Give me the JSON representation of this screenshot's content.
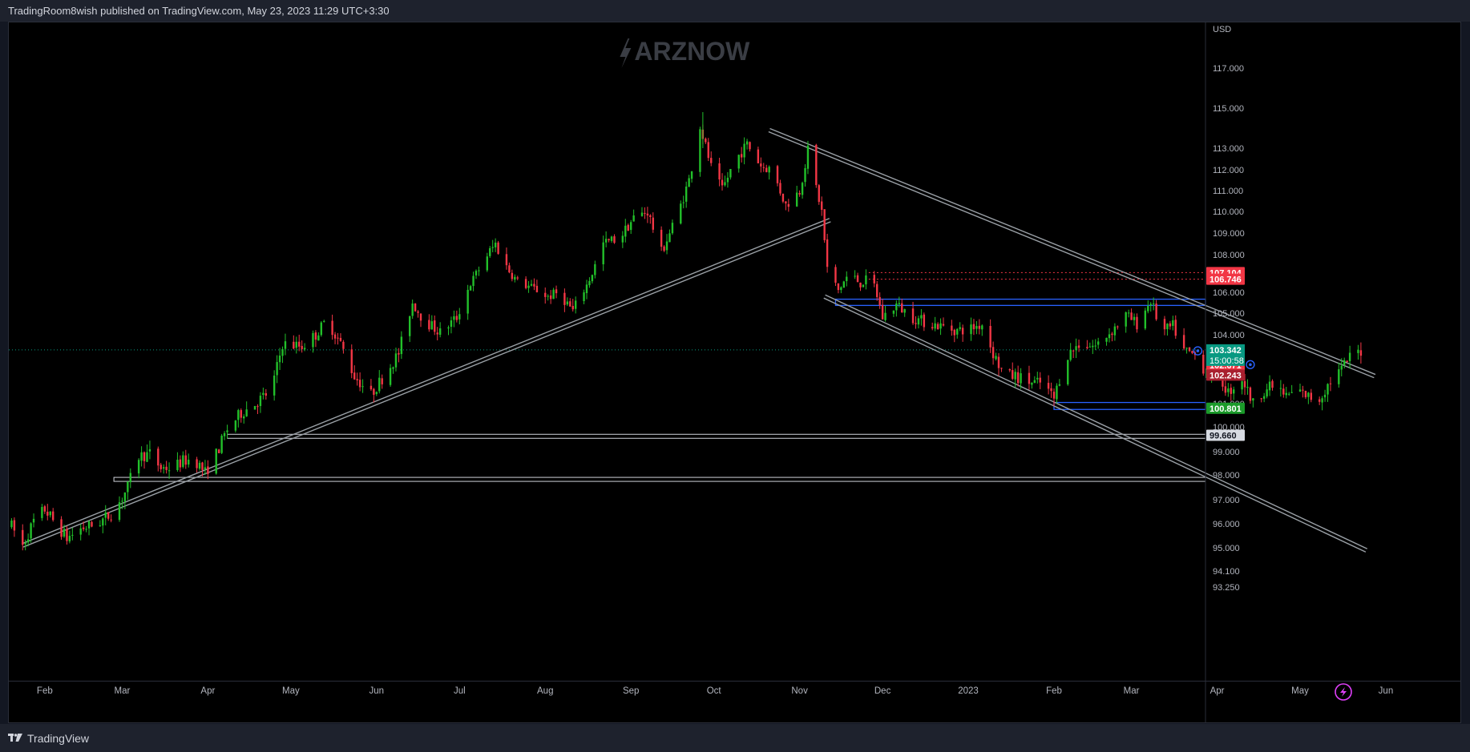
{
  "header": {
    "published": "TradingRoom8wish published on TradingView.com, May 23, 2023 11:29 UTC+3:30"
  },
  "footer": {
    "brand": "TradingView"
  },
  "watermark": {
    "text": "ARZNOW"
  },
  "colors": {
    "up": "#22c02a",
    "down": "#f23645",
    "bg": "#000000",
    "channel": "#9aa0a6",
    "zone_blue": "#2962ff",
    "last_price": "#089981",
    "level_red": "#f23645"
  },
  "chart_data": {
    "type": "candlestick",
    "currency": "USD",
    "ylim": [
      92.9,
      118.3
    ],
    "price_ticks": [
      "117.000",
      "115.000",
      "113.000",
      "112.000",
      "111.000",
      "110.000",
      "109.000",
      "108.000",
      "107.000",
      "106.000",
      "105.000",
      "104.000",
      "101.000",
      "100.000",
      "99.000",
      "98.000",
      "97.000",
      "96.000",
      "95.000",
      "94.100",
      "93.250"
    ],
    "time_ticks": [
      "Feb",
      "Mar",
      "Apr",
      "May",
      "Jun",
      "Jul",
      "Aug",
      "Sep",
      "Oct",
      "Nov",
      "Dec",
      "2023",
      "Feb",
      "Mar",
      "Apr",
      "May",
      "Jun"
    ],
    "x_range": [
      "2022-01-19",
      "2023-06-10"
    ],
    "price_path": [
      [
        "2022-01-20",
        95.9
      ],
      [
        "2022-01-24",
        95.1
      ],
      [
        "2022-01-28",
        96.1
      ],
      [
        "2022-02-01",
        96.6
      ],
      [
        "2022-02-05",
        96.0
      ],
      [
        "2022-02-09",
        95.4
      ],
      [
        "2022-02-14",
        95.8
      ],
      [
        "2022-02-20",
        96.0
      ],
      [
        "2022-02-26",
        96.5
      ],
      [
        "2022-03-03",
        97.5
      ],
      [
        "2022-03-07",
        98.8
      ],
      [
        "2022-03-11",
        98.9
      ],
      [
        "2022-03-15",
        98.3
      ],
      [
        "2022-03-19",
        98.3
      ],
      [
        "2022-03-23",
        98.6
      ],
      [
        "2022-03-27",
        98.7
      ],
      [
        "2022-03-31",
        98.1
      ],
      [
        "2022-04-04",
        98.9
      ],
      [
        "2022-04-08",
        99.9
      ],
      [
        "2022-04-13",
        100.6
      ],
      [
        "2022-04-18",
        101.0
      ],
      [
        "2022-04-24",
        101.6
      ],
      [
        "2022-04-28",
        103.6
      ],
      [
        "2022-05-05",
        103.5
      ],
      [
        "2022-05-10",
        104.0
      ],
      [
        "2022-05-14",
        104.7
      ],
      [
        "2022-05-19",
        103.6
      ],
      [
        "2022-05-24",
        102.2
      ],
      [
        "2022-05-30",
        101.4
      ],
      [
        "2022-06-03",
        102.1
      ],
      [
        "2022-06-09",
        103.2
      ],
      [
        "2022-06-14",
        105.5
      ],
      [
        "2022-06-18",
        104.7
      ],
      [
        "2022-06-24",
        104.1
      ],
      [
        "2022-06-30",
        104.8
      ],
      [
        "2022-07-05",
        106.5
      ],
      [
        "2022-07-10",
        107.8
      ],
      [
        "2022-07-14",
        108.5
      ],
      [
        "2022-07-18",
        107.4
      ],
      [
        "2022-07-22",
        106.6
      ],
      [
        "2022-07-28",
        106.2
      ],
      [
        "2022-08-02",
        105.8
      ],
      [
        "2022-08-06",
        106.0
      ],
      [
        "2022-08-11",
        105.1
      ],
      [
        "2022-08-16",
        106.4
      ],
      [
        "2022-08-22",
        108.5
      ],
      [
        "2022-08-28",
        108.8
      ],
      [
        "2022-09-02",
        109.7
      ],
      [
        "2022-09-07",
        110.0
      ],
      [
        "2022-09-12",
        108.1
      ],
      [
        "2022-09-18",
        109.9
      ],
      [
        "2022-09-22",
        111.5
      ],
      [
        "2022-09-26",
        114.1
      ],
      [
        "2022-09-30",
        112.1
      ],
      [
        "2022-10-04",
        111.0
      ],
      [
        "2022-10-08",
        112.3
      ],
      [
        "2022-10-13",
        113.2
      ],
      [
        "2022-10-18",
        112.2
      ],
      [
        "2022-10-22",
        112.0
      ],
      [
        "2022-10-27",
        110.3
      ],
      [
        "2022-11-01",
        111.0
      ],
      [
        "2022-11-04",
        112.9
      ],
      [
        "2022-11-09",
        110.0
      ],
      [
        "2022-11-11",
        107.3
      ],
      [
        "2022-11-15",
        106.1
      ],
      [
        "2022-11-19",
        107.1
      ],
      [
        "2022-11-23",
        106.5
      ],
      [
        "2022-11-27",
        106.9
      ],
      [
        "2022-12-01",
        104.8
      ],
      [
        "2022-12-06",
        105.4
      ],
      [
        "2022-12-12",
        104.8
      ],
      [
        "2022-12-16",
        104.6
      ],
      [
        "2022-12-22",
        104.4
      ],
      [
        "2022-12-28",
        104.2
      ],
      [
        "2023-01-02",
        104.3
      ],
      [
        "2023-01-06",
        104.5
      ],
      [
        "2023-01-10",
        103.2
      ],
      [
        "2023-01-14",
        102.2
      ],
      [
        "2023-01-18",
        102.2
      ],
      [
        "2023-01-24",
        101.9
      ],
      [
        "2023-01-28",
        101.9
      ],
      [
        "2023-02-01",
        101.2
      ],
      [
        "2023-02-05",
        103.0
      ],
      [
        "2023-02-10",
        103.6
      ],
      [
        "2023-02-16",
        103.5
      ],
      [
        "2023-02-22",
        104.2
      ],
      [
        "2023-02-27",
        104.9
      ],
      [
        "2023-03-03",
        104.5
      ],
      [
        "2023-03-08",
        105.6
      ],
      [
        "2023-03-12",
        104.1
      ],
      [
        "2023-03-16",
        104.4
      ],
      [
        "2023-03-20",
        103.3
      ],
      [
        "2023-03-24",
        103.1
      ],
      [
        "2023-03-28",
        102.4
      ],
      [
        "2023-04-01",
        102.3
      ],
      [
        "2023-04-05",
        101.5
      ],
      [
        "2023-04-10",
        102.1
      ],
      [
        "2023-04-14",
        101.0
      ],
      [
        "2023-04-18",
        101.6
      ],
      [
        "2023-04-22",
        101.8
      ],
      [
        "2023-04-26",
        101.3
      ],
      [
        "2023-04-30",
        101.6
      ],
      [
        "2023-05-04",
        101.3
      ],
      [
        "2023-05-08",
        101.2
      ],
      [
        "2023-05-12",
        102.0
      ],
      [
        "2023-05-16",
        102.5
      ],
      [
        "2023-05-20",
        103.2
      ],
      [
        "2023-05-23",
        103.3
      ]
    ],
    "peak": [
      "2022-09-27",
      114.8
    ],
    "levels": [
      {
        "label": "107.104",
        "price": 107.104,
        "style": "red-dotted",
        "from": "2022-11-26"
      },
      {
        "label": "106.746",
        "price": 106.746,
        "style": "red-dotted",
        "from": "2022-11-26"
      },
      {
        "label": "102.671",
        "price": 102.671,
        "style": "red-dotted",
        "from": "2023-04-08"
      },
      {
        "label": "102.243",
        "price": 102.243,
        "style": "red-dotted",
        "from": "2023-04-08"
      },
      {
        "label": "100.801",
        "price": 100.801,
        "style": "green"
      },
      {
        "label": "99.660",
        "price": 99.66,
        "style": "white-band"
      }
    ],
    "last_price": {
      "label": "103.342",
      "price": 103.342,
      "countdown": "15:00:58"
    },
    "zones": [
      {
        "from": "2022-11-14",
        "y1": 105.67,
        "y2": 105.37
      },
      {
        "from": "2023-02-01",
        "y1": 101.05,
        "y2": 100.75
      }
    ],
    "hbands": [
      {
        "from": "2022-04-08",
        "price": 99.62
      },
      {
        "from": "2022-02-26",
        "price": 97.82
      }
    ],
    "trendlines": [
      {
        "from": [
          "2022-01-24",
          95.1
        ],
        "to": [
          "2022-11-12",
          109.6
        ]
      },
      {
        "from": [
          "2022-10-21",
          113.9
        ],
        "to": [
          "2023-05-28",
          102.2
        ]
      },
      {
        "from": [
          "2022-11-10",
          105.8
        ],
        "to": [
          "2023-05-25",
          94.9
        ]
      }
    ],
    "markers": [
      [
        "2023-03-25",
        103.3
      ],
      [
        "2023-04-04",
        103.0
      ],
      [
        "2023-04-13",
        102.7
      ]
    ]
  }
}
